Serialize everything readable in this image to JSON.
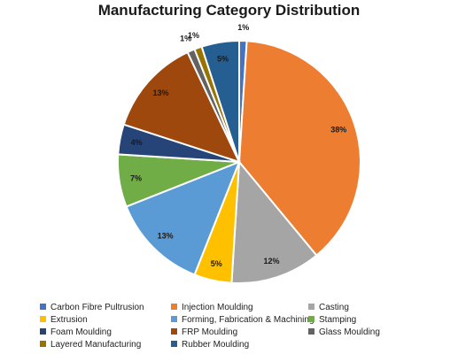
{
  "chart_data": {
    "type": "pie",
    "title": "Manufacturing Category Distribution",
    "slices": [
      {
        "name": "Carbon Fibre Pultrusion",
        "value": 1,
        "label": "1%",
        "color": "#4472C4"
      },
      {
        "name": "Injection Moulding",
        "value": 38,
        "label": "38%",
        "color": "#ED7D31"
      },
      {
        "name": "Casting",
        "value": 12,
        "label": "12%",
        "color": "#A5A5A5"
      },
      {
        "name": "Extrusion",
        "value": 5,
        "label": "5%",
        "color": "#FFC000"
      },
      {
        "name": "Forming, Fabrication & Machining",
        "value": 13,
        "label": "13%",
        "color": "#5B9BD5"
      },
      {
        "name": "Stamping",
        "value": 7,
        "label": "7%",
        "color": "#70AD47"
      },
      {
        "name": "Foam Moulding",
        "value": 4,
        "label": "4%",
        "color": "#264478"
      },
      {
        "name": "FRP Moulding",
        "value": 13,
        "label": "13%",
        "color": "#9E480E"
      },
      {
        "name": "Glass Moulding",
        "value": 1,
        "label": "1%",
        "color": "#636363"
      },
      {
        "name": "Layered Manufacturing",
        "value": 1,
        "label": "1%",
        "color": "#997300"
      },
      {
        "name": "Rubber Moulding",
        "value": 5,
        "label": "5%",
        "color": "#255E91"
      }
    ],
    "legend_position": "bottom"
  }
}
